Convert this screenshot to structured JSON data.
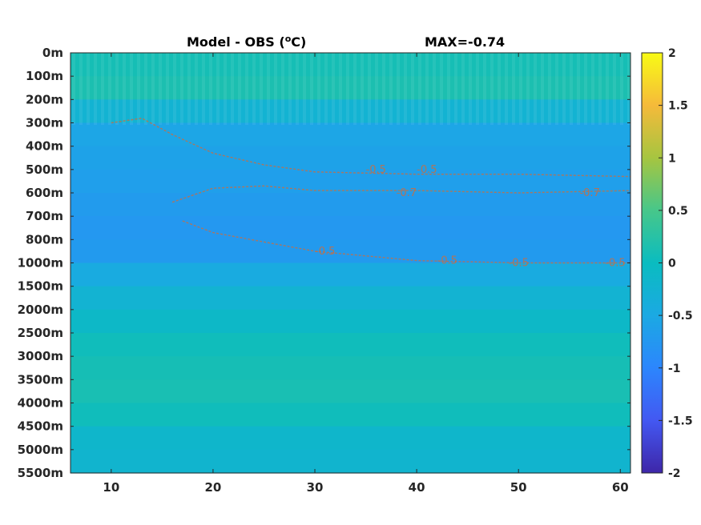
{
  "title": {
    "main": "Model - OBS (",
    "sup": "o",
    "unit_tail": "C)",
    "max_label": "MAX=-0.74"
  },
  "chart_data": {
    "type": "heatmap",
    "x_ticks": [
      10,
      20,
      30,
      40,
      50,
      60
    ],
    "xlim": [
      6,
      61
    ],
    "y_tick_labels": [
      "0m",
      "100m",
      "200m",
      "300m",
      "400m",
      "500m",
      "600m",
      "700m",
      "800m",
      "1000m",
      "1500m",
      "2000m",
      "2500m",
      "3000m",
      "3500m",
      "4000m",
      "4500m",
      "5000m",
      "5500m"
    ],
    "colorbar": {
      "range": [
        -2,
        2
      ],
      "ticks": [
        "2",
        "1.5",
        "1",
        "0.5",
        "0",
        "-0.5",
        "-1",
        "-1.5",
        "-2"
      ],
      "colormap": "parula"
    },
    "depth_band_values": [
      0.1,
      0.15,
      -0.25,
      -0.55,
      -0.6,
      -0.65,
      -0.7,
      -0.75,
      -0.72,
      -0.45,
      -0.25,
      -0.1,
      0.05,
      0.1,
      0.12,
      0.05,
      -0.15,
      -0.2
    ],
    "contour_labels": [
      {
        "text": "-0.5",
        "x": 36,
        "depth_index": 5
      },
      {
        "text": "-0.5",
        "x": 41,
        "depth_index": 5
      },
      {
        "text": "-0.7",
        "x": 39,
        "depth_index": 6
      },
      {
        "text": "-0.7",
        "x": 57,
        "depth_index": 6
      },
      {
        "text": "-0.5",
        "x": 31,
        "depth_index": 8.5
      },
      {
        "text": "-0.5",
        "x": 43,
        "depth_index": 8.9
      },
      {
        "text": "-0.5",
        "x": 50,
        "depth_index": 9
      },
      {
        "text": "-0.5",
        "x": 59.5,
        "depth_index": 9
      }
    ]
  }
}
